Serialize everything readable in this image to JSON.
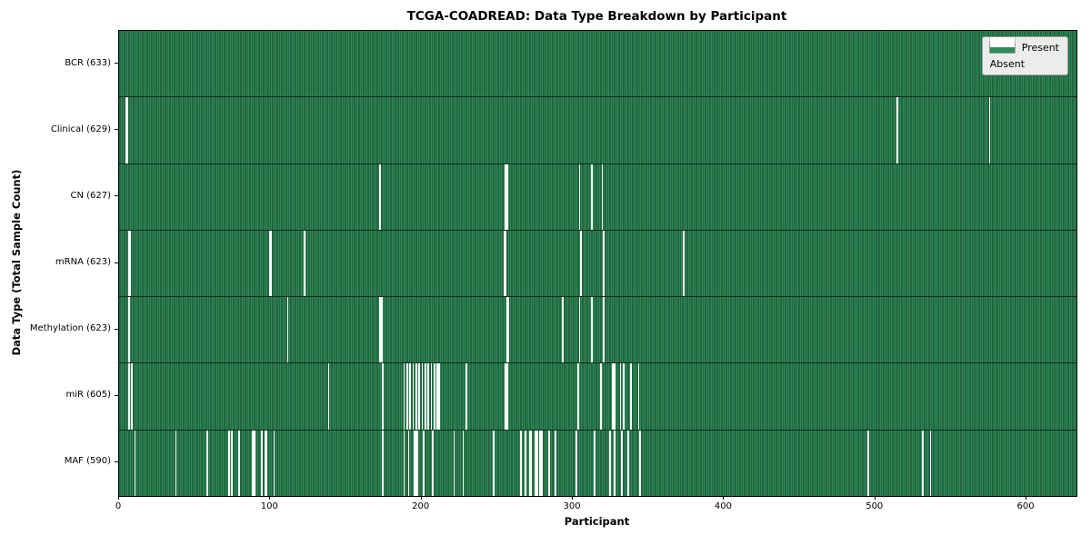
{
  "title": "TCGA-COADREAD: Data Type Breakdown by Participant",
  "xlabel": "Participant",
  "ylabel": "Data Type (Total Sample Count)",
  "legend": {
    "present_label": "Present",
    "absent_label": "Absent"
  },
  "colors": {
    "present": "#2e8b57",
    "present_edge": "#183f29",
    "absent": "#fbfbfb",
    "row_divider": "#0c2b1a",
    "legend_background": "#ebedeb"
  },
  "chart_data": {
    "type": "heatmap",
    "title": "TCGA-COADREAD: Data Type Breakdown by Participant",
    "xlabel": "Participant",
    "ylabel": "Data Type (Total Sample Count)",
    "n_participants": 633,
    "x_ticks": [
      0,
      100,
      200,
      300,
      400,
      500,
      600
    ],
    "x_range": [
      0,
      633
    ],
    "grid": false,
    "legend_entries": [
      "Present",
      "Absent"
    ],
    "legend_position": "upper right",
    "value_encoding": {
      "present": "green cell",
      "absent": "white cell"
    },
    "rows": [
      {
        "name": "BCR",
        "label": "BCR (633)",
        "total_samples": 633,
        "absent_participants": []
      },
      {
        "name": "Clinical",
        "label": "Clinical (629)",
        "total_samples": 629,
        "absent_participants": [
          4,
          5,
          514,
          575
        ]
      },
      {
        "name": "CN",
        "label": "CN (627)",
        "total_samples": 627,
        "absent_participants": [
          172,
          255,
          256,
          304,
          312,
          319
        ]
      },
      {
        "name": "mRNA",
        "label": "mRNA (623)",
        "total_samples": 623,
        "absent_participants": [
          6,
          7,
          99,
          100,
          122,
          254,
          255,
          305,
          320,
          373
        ]
      },
      {
        "name": "Methylation",
        "label": "Methylation (623)",
        "total_samples": 623,
        "absent_participants": [
          6,
          111,
          172,
          173,
          256,
          257,
          293,
          304,
          312,
          320
        ]
      },
      {
        "name": "miR",
        "label": "miR (605)",
        "total_samples": 605,
        "absent_participants": [
          6,
          8,
          138,
          174,
          188,
          190,
          192,
          194,
          196,
          198,
          200,
          202,
          204,
          206,
          208,
          210,
          211,
          229,
          255,
          256,
          303,
          318,
          326,
          327,
          331,
          333,
          338,
          343
        ]
      },
      {
        "name": "MAF",
        "label": "MAF (590)",
        "total_samples": 590,
        "absent_participants": [
          10,
          37,
          58,
          72,
          74,
          79,
          88,
          89,
          94,
          96,
          97,
          102,
          174,
          188,
          191,
          195,
          196,
          197,
          201,
          207,
          221,
          227,
          247,
          265,
          268,
          271,
          272,
          275,
          276,
          278,
          279,
          284,
          288,
          302,
          314,
          324,
          327,
          332,
          336,
          344,
          495,
          531,
          536
        ]
      }
    ]
  }
}
